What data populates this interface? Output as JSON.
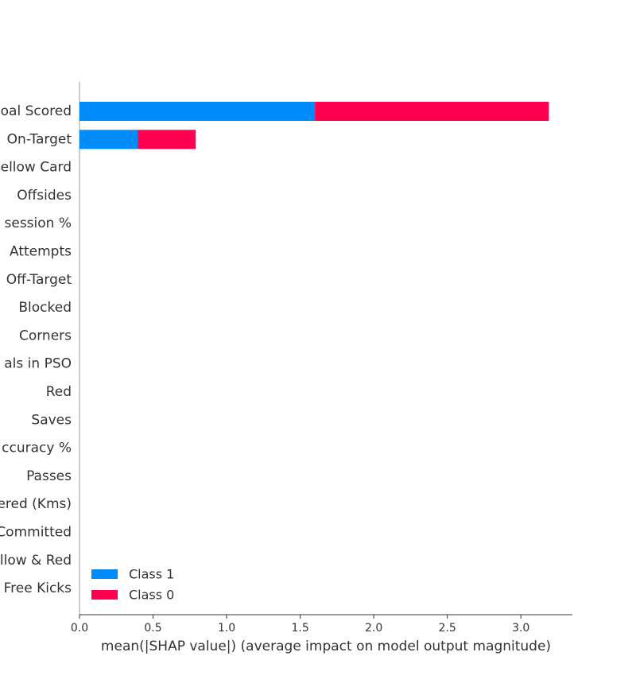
{
  "chart_data": {
    "type": "stacked-barh",
    "xlabel": "mean(|SHAP value|) (average impact on model output magnitude)",
    "categories": [
      "oal Scored",
      "On-Target",
      "ellow Card",
      "Offsides",
      "session %",
      "Attempts",
      "Off-Target",
      "Blocked",
      "Corners",
      "als in PSO",
      "Red",
      "Saves",
      "ccuracy %",
      "Passes",
      "ered (Kms)",
      "Committed",
      "llow & Red",
      "Free Kicks"
    ],
    "series": [
      {
        "name": "Class 1",
        "color": "#008bfb",
        "values": [
          1.6,
          0.395,
          0,
          0,
          0,
          0,
          0,
          0,
          0,
          0,
          0,
          0,
          0,
          0,
          0,
          0,
          0,
          0
        ]
      },
      {
        "name": "Class 0",
        "color": "#ff0051",
        "values": [
          1.59,
          0.395,
          0,
          0,
          0,
          0,
          0,
          0,
          0,
          0,
          0,
          0,
          0,
          0,
          0,
          0,
          0,
          0
        ]
      }
    ],
    "xlim": [
      0,
      3.35
    ],
    "xticks": [
      {
        "value": 0,
        "label": "0.0"
      },
      0.5,
      {
        "value": 1,
        "label": "1.0"
      },
      1.5,
      {
        "value": 2,
        "label": "2.0"
      },
      2.5,
      {
        "value": 3,
        "label": "3.0"
      }
    ],
    "legend": "lower left"
  }
}
